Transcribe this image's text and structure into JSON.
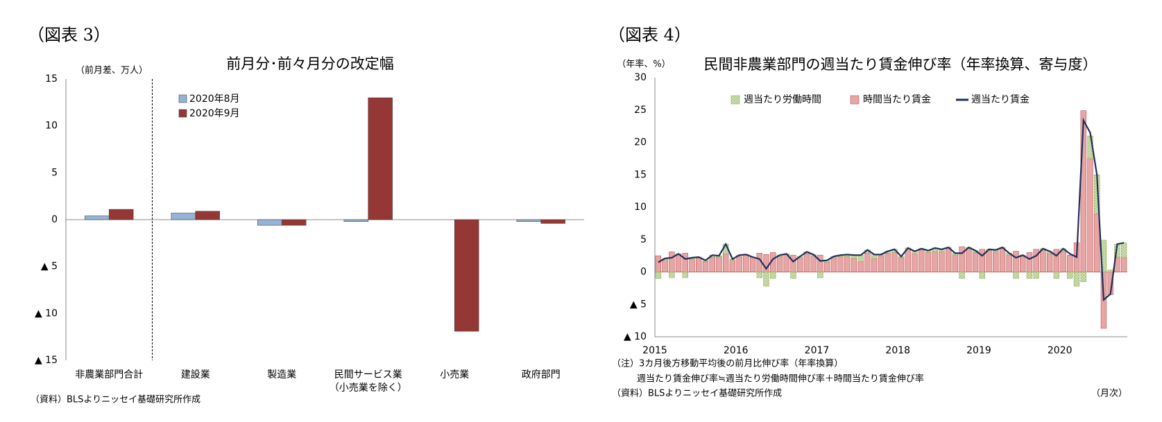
{
  "chart_data": [
    {
      "type": "bar",
      "figure_label": "（図表 3）",
      "title": "前月分･前々月分の改定幅",
      "y_label": "（前月差、万人）",
      "source": "（資料）BLSよりニッセイ基礎研究所作成",
      "categories": [
        "非農業部門合計",
        "建設業",
        "製造業",
        "民間サービス業\n（小売業を除く）",
        "小売業",
        "政府部門"
      ],
      "series": [
        {
          "name": "2020年8月",
          "color": "#95b3d7",
          "values": [
            0.4,
            0.7,
            -0.6,
            -0.2,
            0,
            -0.2
          ]
        },
        {
          "name": "2020年9月",
          "color": "#953735",
          "values": [
            1.1,
            0.9,
            -0.6,
            13.0,
            -11.9,
            -0.4
          ]
        }
      ],
      "stacked": false,
      "ylim": [
        -15,
        15
      ],
      "yticks": [
        {
          "value": -15,
          "label": "▲ 15"
        },
        {
          "value": -10,
          "label": "▲ 10"
        },
        {
          "value": -5,
          "label": "▲ 5"
        },
        0,
        5,
        10,
        15
      ],
      "grid": true,
      "legend": "upper left"
    },
    {
      "type": "bar",
      "figure_label": "（図表 4）",
      "title": "民間非農業部門の週当たり賃金伸び率（年率換算、寄与度）",
      "y_label": "（年率、%）",
      "notes": [
        "（注）3カ月後方移動平均後の前月比伸び率（年率換算）",
        "週当たり賃金伸び率≒週当たり労働時間伸び率＋時間当たり賃金伸び率"
      ],
      "source": "（資料）BLSよりニッセイ基礎研究所作成",
      "x_unit": "（月次）",
      "categories": [
        "2015",
        null,
        null,
        null,
        null,
        null,
        null,
        null,
        null,
        null,
        null,
        null,
        "2016",
        null,
        null,
        null,
        null,
        null,
        null,
        null,
        null,
        null,
        null,
        null,
        "2017",
        null,
        null,
        null,
        null,
        null,
        null,
        null,
        null,
        null,
        null,
        null,
        "2018",
        null,
        null,
        null,
        null,
        null,
        null,
        null,
        null,
        null,
        null,
        null,
        "2019",
        null,
        null,
        null,
        null,
        null,
        null,
        null,
        null,
        null,
        null,
        null,
        "2020",
        null,
        null,
        null,
        null,
        null,
        null,
        null,
        null,
        null
      ],
      "series": [
        {
          "name": "週当たり労働時間",
          "color": "#d7e4bd",
          "kind": "bar",
          "values": [
            -1.0,
            0.3,
            -0.9,
            0.2,
            -0.9,
            0.2,
            0.1,
            0.2,
            0.3,
            0.2,
            1.5,
            0.2,
            0.2,
            0.1,
            0.1,
            -0.9,
            -2.2,
            -1.0,
            0.2,
            0.1,
            -1.0,
            0.2,
            0.3,
            0.2,
            -0.9,
            0.3,
            0.2,
            0.2,
            0.3,
            0.5,
            1.0,
            0.5,
            0.6,
            0.2,
            0.3,
            0.5,
            0.2,
            0.3,
            0.4,
            0.2,
            0.3,
            0.6,
            0.4,
            0.2,
            0.3,
            -1.0,
            0.2,
            0.3,
            -1.0,
            0.2,
            0.3,
            0.2,
            0.3,
            -1.0,
            0.2,
            -1.0,
            -1.0,
            0.3,
            0.4,
            -1.0,
            0.3,
            -1.0,
            -2.2,
            -1.5,
            3.5,
            6.0,
            4.9,
            0.3,
            2.0,
            2.3
          ]
        },
        {
          "name": "時間当たり賃金",
          "color": "#e6a6a6",
          "kind": "bar",
          "values": [
            2.5,
            1.8,
            3.1,
            2.6,
            2.9,
            2.0,
            2.2,
            1.6,
            2.3,
            2.3,
            2.8,
            1.8,
            2.4,
            2.6,
            2.2,
            2.9,
            2.7,
            3.0,
            2.4,
            2.7,
            2.6,
            2.2,
            2.8,
            2.5,
            2.6,
            1.5,
            2.2,
            2.4,
            2.4,
            2.1,
            1.6,
            2.9,
            2.1,
            2.5,
            2.9,
            3.0,
            2.2,
            3.4,
            2.8,
            3.4,
            3.0,
            3.1,
            3.1,
            3.6,
            2.6,
            3.9,
            3.6,
            3.0,
            3.5,
            3.3,
            3.1,
            3.6,
            2.6,
            3.2,
            2.4,
            3.0,
            3.5,
            3.3,
            2.8,
            3.5,
            3.3,
            2.6,
            4.5,
            24.9,
            17.5,
            9.0,
            -8.7,
            -3.5,
            2.3,
            2.2
          ]
        },
        {
          "name": "週当たり賃金",
          "color": "#1f2f5c",
          "kind": "line",
          "values": [
            1.5,
            2.1,
            2.2,
            2.8,
            2.0,
            2.2,
            2.3,
            1.8,
            2.6,
            2.5,
            4.3,
            2.0,
            2.6,
            2.7,
            2.3,
            2.0,
            0.5,
            2.0,
            2.6,
            2.8,
            1.6,
            2.4,
            3.1,
            2.7,
            1.7,
            1.8,
            2.4,
            2.6,
            2.7,
            2.6,
            2.6,
            3.4,
            2.7,
            2.7,
            3.2,
            3.5,
            2.4,
            3.7,
            3.2,
            3.6,
            3.3,
            3.7,
            3.5,
            3.8,
            2.9,
            2.9,
            3.8,
            3.3,
            2.5,
            3.5,
            3.4,
            3.8,
            2.9,
            2.2,
            2.6,
            2.0,
            2.5,
            3.6,
            3.2,
            2.5,
            3.6,
            2.8,
            2.3,
            23.4,
            21.5,
            15.0,
            -4.3,
            -3.4,
            4.3,
            4.5
          ]
        }
      ],
      "stacked": true,
      "ylim": [
        -10,
        30
      ],
      "yticks": [
        {
          "value": -10,
          "label": "▲ 10"
        },
        {
          "value": -5,
          "label": "▲ 5"
        },
        0,
        5,
        10,
        15,
        20,
        25,
        30
      ],
      "grid": true,
      "legend": "upper center"
    }
  ]
}
